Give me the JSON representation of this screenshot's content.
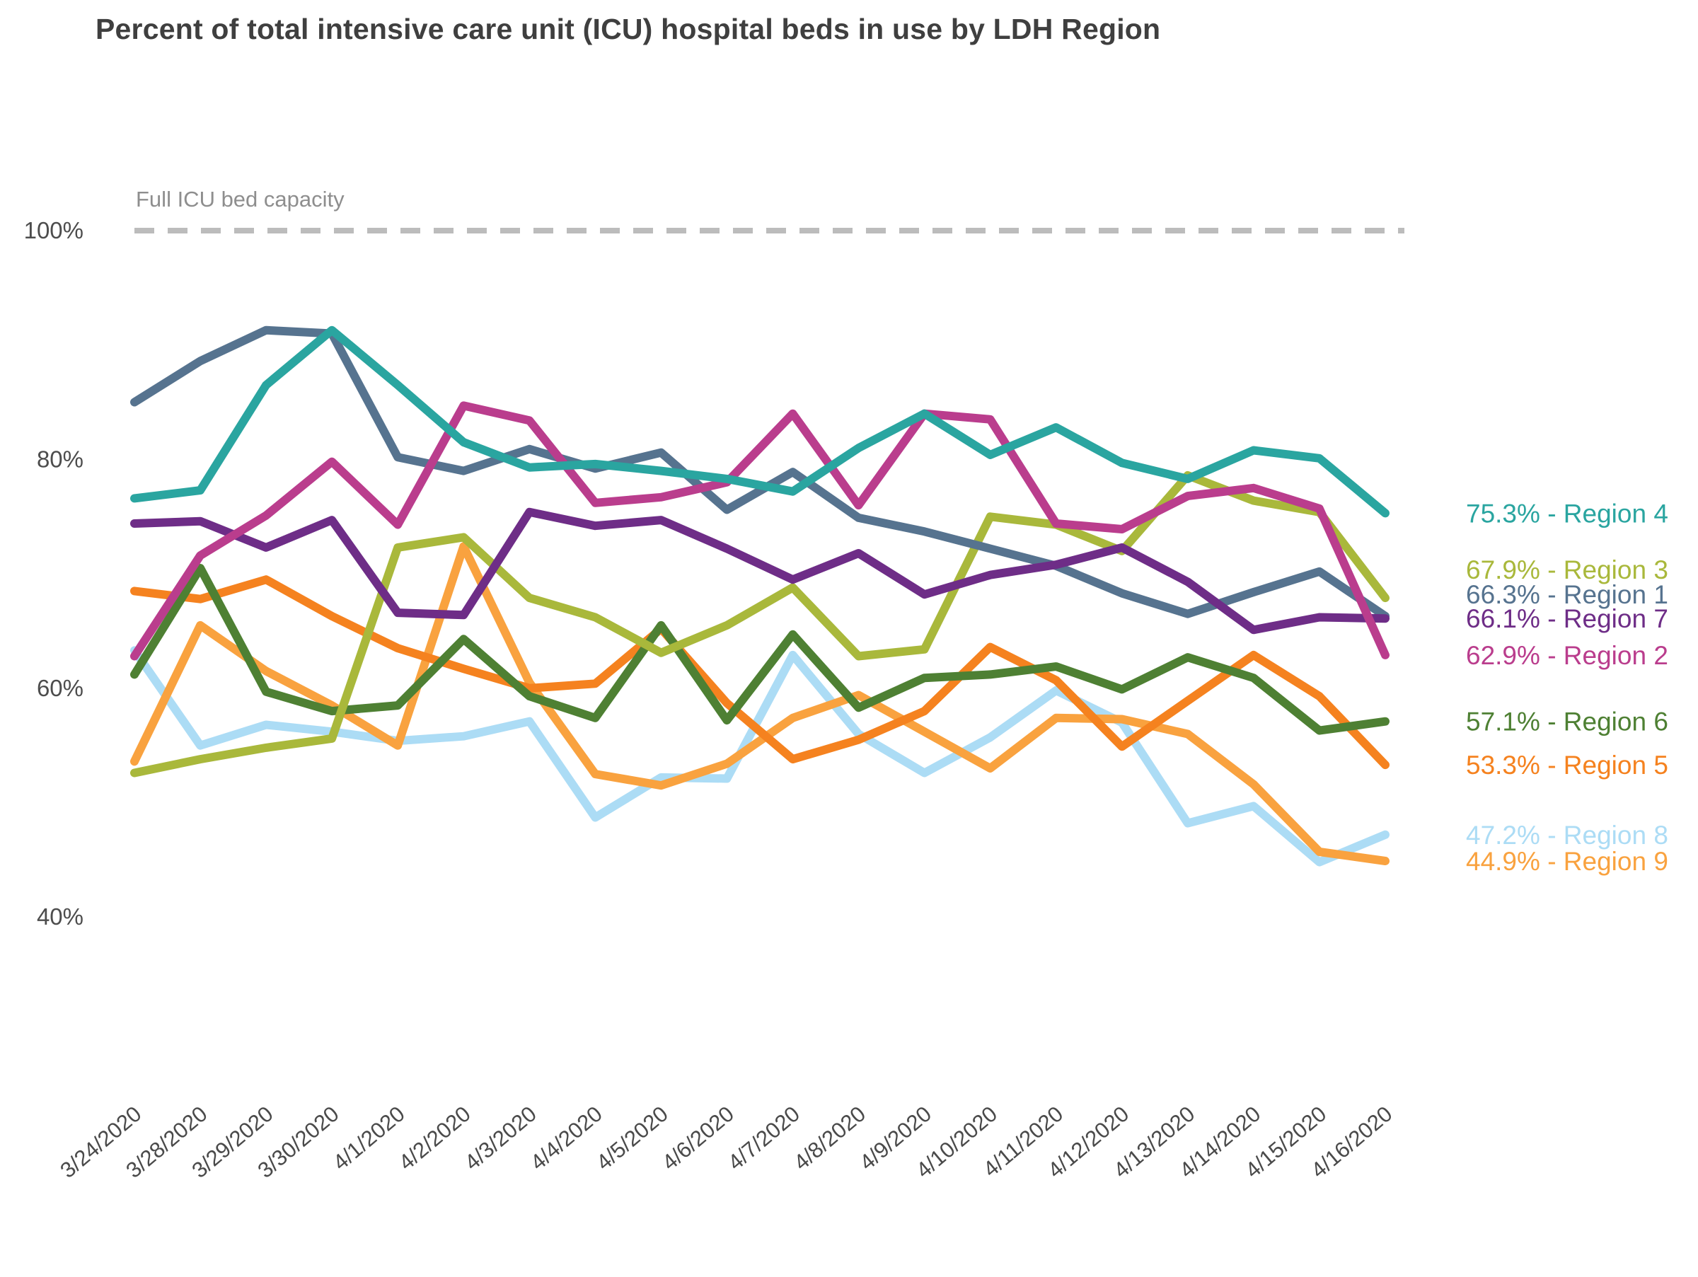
{
  "title": "Percent of total intensive care unit (ICU) hospital beds in use by LDH Region",
  "capacity_label": "Full ICU bed capacity",
  "chart_data": {
    "type": "line",
    "grid": false,
    "legend_position": "right",
    "ylim": [
      38,
      103
    ],
    "capacity_value": 100,
    "y_ticks": [
      {
        "label": "100%",
        "value": 100
      },
      {
        "label": "80%",
        "value": 80
      },
      {
        "label": "60%",
        "value": 60
      },
      {
        "label": "40%",
        "value": 40
      }
    ],
    "x_labels": [
      "3/24/2020",
      "3/28/2020",
      "3/29/2020",
      "3/30/2020",
      "4/1/2020",
      "4/2/2020",
      "4/3/2020",
      "4/4/2020",
      "4/5/2020",
      "4/6/2020",
      "4/7/2020",
      "4/8/2020",
      "4/9/2020",
      "4/10/2020",
      "4/11/2020",
      "4/12/2020",
      "4/13/2020",
      "4/14/2020",
      "4/15/2020",
      "4/16/2020"
    ],
    "series": [
      {
        "name": "Region 4",
        "end_label": "75.3%",
        "color": "#2AA5A0",
        "values": [
          76.6,
          77.3,
          86.5,
          91.3,
          86.5,
          81.5,
          79.3,
          79.6,
          79.0,
          78.3,
          77.2,
          81.0,
          84.0,
          80.4,
          82.8,
          79.7,
          78.3,
          80.8,
          80.1,
          75.3
        ]
      },
      {
        "name": "Region 3",
        "end_label": "67.9%",
        "color": "#A9B83B",
        "values": [
          52.6,
          53.8,
          54.8,
          55.6,
          72.3,
          73.2,
          67.9,
          66.2,
          63.1,
          65.5,
          68.8,
          62.8,
          63.4,
          75.0,
          74.3,
          72.0,
          78.6,
          76.4,
          75.4,
          67.9
        ]
      },
      {
        "name": "Region 1",
        "end_label": "66.3%",
        "color": "#56738F",
        "values": [
          85.0,
          88.6,
          91.3,
          91.0,
          80.2,
          79.0,
          80.9,
          79.2,
          80.6,
          75.6,
          78.9,
          74.9,
          73.7,
          72.2,
          70.7,
          68.3,
          66.5,
          68.4,
          70.2,
          66.3
        ]
      },
      {
        "name": "Region 7",
        "end_label": "66.1%",
        "color": "#6E2D87",
        "values": [
          74.4,
          74.6,
          72.3,
          74.7,
          66.6,
          66.4,
          75.4,
          74.2,
          74.7,
          72.2,
          69.5,
          71.8,
          68.2,
          69.9,
          70.8,
          72.3,
          69.3,
          65.1,
          66.2,
          66.1
        ]
      },
      {
        "name": "Region 2",
        "end_label": "62.9%",
        "color": "#BA3D8D",
        "values": [
          62.8,
          71.6,
          75.1,
          79.8,
          74.3,
          84.7,
          83.4,
          76.2,
          76.7,
          78.0,
          84.0,
          76.0,
          84.0,
          83.5,
          74.4,
          73.9,
          76.8,
          77.5,
          75.7,
          62.9
        ]
      },
      {
        "name": "Region 6",
        "end_label": "57.1%",
        "color": "#4E8033",
        "values": [
          61.2,
          70.5,
          59.7,
          58.0,
          58.5,
          64.3,
          59.3,
          57.4,
          65.5,
          57.2,
          64.7,
          58.3,
          60.9,
          61.2,
          61.9,
          59.9,
          62.7,
          60.9,
          56.3,
          57.1
        ]
      },
      {
        "name": "Region 5",
        "end_label": "53.3%",
        "color": "#F5821F",
        "values": [
          68.5,
          67.8,
          69.5,
          66.3,
          63.5,
          61.7,
          60.0,
          60.4,
          65.2,
          58.7,
          53.8,
          55.5,
          58.0,
          63.6,
          60.7,
          54.9,
          58.9,
          62.9,
          59.3,
          53.3
        ]
      },
      {
        "name": "Region 8",
        "end_label": "47.2%",
        "color": "#ACDCF5",
        "values": [
          63.3,
          55.0,
          56.8,
          56.2,
          55.4,
          55.8,
          57.1,
          48.7,
          52.2,
          52.1,
          62.9,
          56.0,
          52.6,
          55.7,
          59.8,
          57.0,
          48.2,
          49.7,
          44.8,
          47.2
        ]
      },
      {
        "name": "Region 9",
        "end_label": "44.9%",
        "color": "#F9A23F",
        "values": [
          53.6,
          65.5,
          61.5,
          58.5,
          55.0,
          72.4,
          60.5,
          52.5,
          51.5,
          53.4,
          57.4,
          59.4,
          56.2,
          53.0,
          57.4,
          57.3,
          56.0,
          51.6,
          45.7,
          44.9
        ]
      }
    ]
  }
}
